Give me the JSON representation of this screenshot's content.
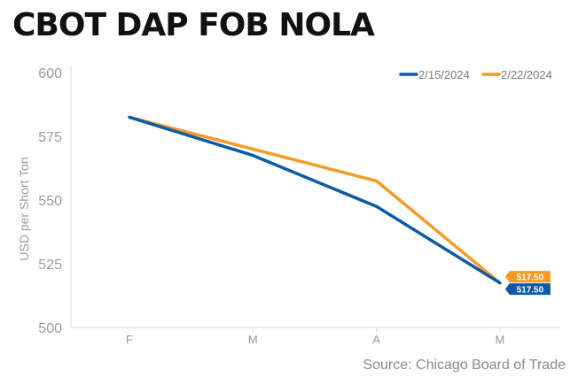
{
  "title": "CBOT DAP FOB NOLA",
  "source": "Source: Chicago Board of Trade",
  "colors": {
    "series1": "#0a5aa5",
    "series2": "#f59a25",
    "axis_text": "#9a9a9a",
    "grid": "#e6e6e6"
  },
  "chart_data": {
    "type": "line",
    "title": "CBOT DAP FOB NOLA",
    "xlabel": "",
    "ylabel": "USD per Short Ton",
    "categories": [
      "F",
      "M",
      "A",
      "M"
    ],
    "ylim": [
      500,
      600
    ],
    "yticks": [
      500,
      525,
      550,
      575,
      600
    ],
    "grid": false,
    "legend_position": "top-right",
    "series": [
      {
        "name": "2/15/2024",
        "color": "#0a5aa5",
        "values": [
          582.5,
          567.5,
          547.5,
          517.5
        ]
      },
      {
        "name": "2/22/2024",
        "color": "#f59a25",
        "values": [
          582.5,
          570,
          557.5,
          517.5
        ]
      }
    ],
    "end_labels": [
      "517.50",
      "517.50"
    ]
  }
}
